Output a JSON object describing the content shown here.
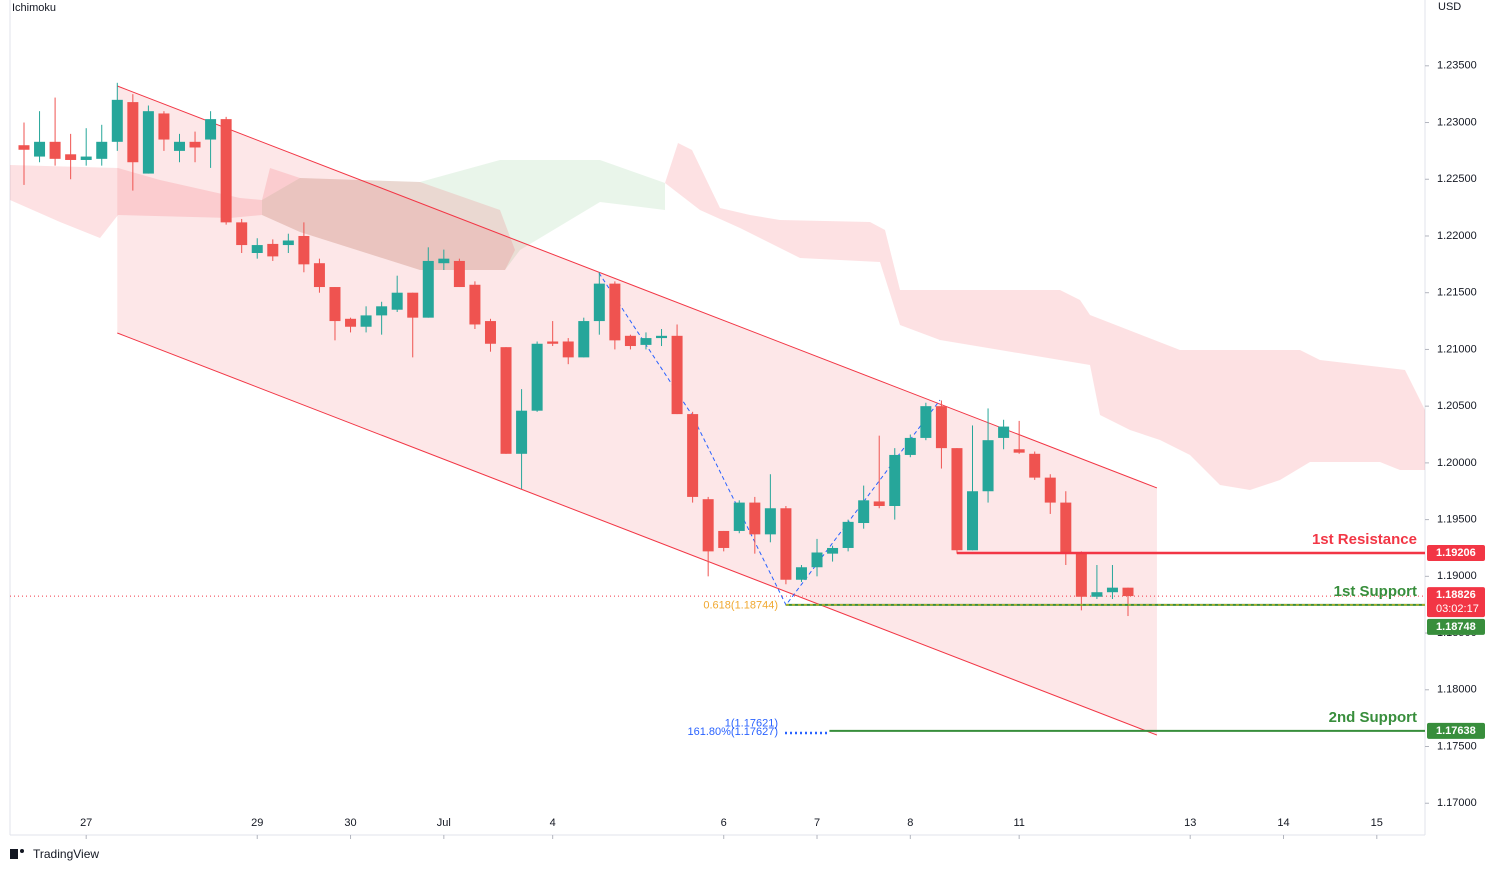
{
  "chart_data": {
    "type": "candlestick",
    "title": "Ichimoku",
    "currency": "USD",
    "up_color": "#26a69a",
    "down_color": "#ef5350",
    "x": [
      0,
      1,
      2,
      3,
      4,
      5,
      6,
      7,
      8,
      9,
      10,
      11,
      12,
      13,
      14,
      15,
      16,
      17,
      18,
      19,
      20,
      21,
      22,
      23,
      24,
      25,
      26,
      27,
      28,
      29,
      30,
      31,
      32,
      33,
      34,
      35,
      36,
      37,
      38,
      39,
      40,
      41,
      42,
      43,
      44,
      45,
      46,
      47,
      48,
      49,
      50,
      51,
      52,
      53,
      54,
      55,
      56,
      57,
      58,
      59,
      60,
      61,
      62,
      63,
      64,
      65,
      66,
      67,
      68,
      69,
      70,
      71
    ],
    "open": [
      1.228,
      1.227,
      1.2283,
      1.2272,
      1.2267,
      1.2268,
      1.2283,
      1.2318,
      1.2255,
      1.2308,
      1.2275,
      1.2283,
      1.2285,
      1.2303,
      1.2212,
      1.2185,
      1.2193,
      1.2192,
      1.22,
      1.2176,
      1.2155,
      1.2127,
      1.212,
      1.213,
      1.2135,
      1.215,
      1.2128,
      1.2176,
      1.2178,
      1.2157,
      1.2125,
      1.2102,
      1.2008,
      1.2046,
      1.2107,
      1.2107,
      1.2093,
      1.2125,
      1.2158,
      1.2112,
      1.2104,
      1.211,
      1.2112,
      1.2043,
      1.1968,
      1.194,
      1.194,
      1.1965,
      1.1937,
      1.196,
      1.1897,
      1.1908,
      1.192,
      1.1925,
      1.1947,
      1.1966,
      1.1962,
      1.2007,
      1.2022,
      1.205,
      1.2013,
      1.1923,
      1.1975,
      1.2022,
      1.2012,
      1.2008,
      1.1987,
      1.1965,
      1.192,
      1.1882,
      1.1886,
      1.189
    ],
    "high": [
      1.23,
      1.231,
      1.2322,
      1.229,
      1.2295,
      1.2298,
      1.2335,
      1.2325,
      1.2315,
      1.231,
      1.229,
      1.2292,
      1.231,
      1.2305,
      1.2215,
      1.2198,
      1.2197,
      1.2202,
      1.2212,
      1.218,
      1.2155,
      1.2128,
      1.2138,
      1.2142,
      1.2165,
      1.215,
      1.219,
      1.2188,
      1.218,
      1.216,
      1.2127,
      1.2102,
      1.2065,
      1.2107,
      1.2125,
      1.211,
      1.2128,
      1.2168,
      1.216,
      1.2113,
      1.2115,
      1.2118,
      1.2122,
      1.2045,
      1.197,
      1.194,
      1.1967,
      1.197,
      1.199,
      1.1962,
      1.191,
      1.1933,
      1.1927,
      1.195,
      1.198,
      1.2024,
      1.2013,
      1.2025,
      1.2053,
      1.2055,
      1.2013,
      1.2033,
      1.2048,
      1.2038,
      1.2037,
      1.201,
      1.199,
      1.1975,
      1.1922,
      1.191,
      1.191,
      1.189
    ],
    "low": [
      1.2245,
      1.2265,
      1.2262,
      1.225,
      1.2262,
      1.2262,
      1.2275,
      1.224,
      1.2255,
      1.2275,
      1.2265,
      1.2265,
      1.226,
      1.221,
      1.2185,
      1.218,
      1.2178,
      1.2185,
      1.2168,
      1.215,
      1.2108,
      1.2115,
      1.2115,
      1.2113,
      1.2133,
      1.2093,
      1.2128,
      1.217,
      1.2155,
      1.2118,
      1.2098,
      1.2008,
      1.1977,
      1.2045,
      1.2103,
      1.2087,
      1.2093,
      1.2113,
      1.21,
      1.21,
      1.21,
      1.2103,
      1.2043,
      1.1965,
      1.19,
      1.1922,
      1.1938,
      1.192,
      1.193,
      1.1893,
      1.1895,
      1.19,
      1.1913,
      1.1922,
      1.1942,
      1.196,
      1.195,
      1.2005,
      1.202,
      1.1995,
      1.192,
      1.1923,
      1.1965,
      1.2012,
      1.2008,
      1.1985,
      1.1955,
      1.191,
      1.187,
      1.188,
      1.188,
      1.1865
    ],
    "close": [
      1.2276,
      1.2283,
      1.2268,
      1.2267,
      1.227,
      1.2283,
      1.232,
      1.2265,
      1.231,
      1.2285,
      1.2283,
      1.2278,
      1.2303,
      1.2212,
      1.2192,
      1.2192,
      1.2182,
      1.2196,
      1.2175,
      1.2155,
      1.2125,
      1.212,
      1.213,
      1.2138,
      1.215,
      1.2128,
      1.2178,
      1.218,
      1.2155,
      1.2122,
      1.2105,
      1.2008,
      1.2046,
      1.2105,
      1.2105,
      1.2093,
      1.2125,
      1.2158,
      1.2108,
      1.2103,
      1.211,
      1.2112,
      1.2043,
      1.197,
      1.1922,
      1.1925,
      1.1965,
      1.1937,
      1.196,
      1.1897,
      1.1908,
      1.1921,
      1.1925,
      1.1948,
      1.1967,
      1.1962,
      1.2007,
      1.2022,
      1.205,
      1.2013,
      1.1923,
      1.1975,
      1.202,
      1.2032,
      1.2009,
      1.1987,
      1.1965,
      1.192,
      1.1882,
      1.1886,
      1.189,
      1.18826
    ],
    "xlim": [
      -0.9,
      90.1
    ],
    "ylim": [
      1.1672,
      1.2408
    ],
    "xticks": [
      {
        "value": 4,
        "label": "27"
      },
      {
        "value": 15,
        "label": "29"
      },
      {
        "value": 21,
        "label": "30"
      },
      {
        "value": 27,
        "label": "Jul"
      },
      {
        "value": 34,
        "label": "4"
      },
      {
        "value": 45,
        "label": "6"
      },
      {
        "value": 51,
        "label": "7"
      },
      {
        "value": 57,
        "label": "8"
      },
      {
        "value": 64,
        "label": "11"
      },
      {
        "value": 75,
        "label": "13"
      },
      {
        "value": 81,
        "label": "14"
      },
      {
        "value": 87,
        "label": "15"
      }
    ],
    "yticks": [
      {
        "value": 1.17,
        "label": "1.17000"
      },
      {
        "value": 1.175,
        "label": "1.17500"
      },
      {
        "value": 1.18,
        "label": "1.18000"
      },
      {
        "value": 1.185,
        "label": "1.18500"
      },
      {
        "value": 1.19,
        "label": "1.19000"
      },
      {
        "value": 1.195,
        "label": "1.19500"
      },
      {
        "value": 1.2,
        "label": "1.20000"
      },
      {
        "value": 1.205,
        "label": "1.20500"
      },
      {
        "value": 1.21,
        "label": "1.21000"
      },
      {
        "value": 1.215,
        "label": "1.21500"
      },
      {
        "value": 1.22,
        "label": "1.22000"
      },
      {
        "value": 1.225,
        "label": "1.22500"
      },
      {
        "value": 1.23,
        "label": "1.23000"
      },
      {
        "value": 1.235,
        "label": "1.23500"
      }
    ],
    "channel": {
      "x": [
        6,
        72.86
      ],
      "upper": [
        1.23322,
        1.19779
      ],
      "lower": [
        1.21145,
        1.17601
      ],
      "color": "#f23645"
    },
    "levels": [
      {
        "name": "1st Resistance",
        "value": 1.19206,
        "label": "1.19206",
        "color": "#f23645",
        "x_start": 60
      },
      {
        "name": "1st Support",
        "value": 1.18748,
        "label": "1.18748",
        "color": "#388e3c",
        "x_start": 49
      },
      {
        "name": "2nd Support",
        "value": 1.17638,
        "label": "1.17638",
        "color": "#388e3c",
        "x_start": 51.8
      }
    ],
    "current_price": {
      "value": 1.18826,
      "label": "1.18826",
      "countdown": "03:02:17",
      "color": "#f23645"
    },
    "fib_labels": [
      {
        "text": "0.618(1.18744)",
        "value": 1.18744,
        "color": "#f0a830"
      },
      {
        "text": "1(1.17621)",
        "value": 1.17621,
        "color": "#2962ff"
      },
      {
        "text": "161.80%(1.17627)",
        "value": 1.17627,
        "color": "#2962ff"
      }
    ],
    "brand": "TradingView"
  }
}
